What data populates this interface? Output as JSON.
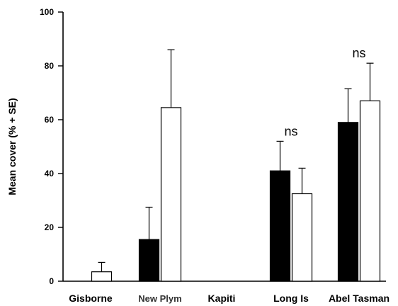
{
  "chart_data": {
    "type": "bar",
    "ylabel": "Mean cover (% + SE)",
    "xlabel": "",
    "ylim": [
      0,
      100
    ],
    "yticks": [
      "0",
      "20",
      "40",
      "60",
      "80",
      "100"
    ],
    "categories": [
      "Gisborne",
      "New Plym",
      "Kapiti",
      "Long Is",
      "Abel Tasman"
    ],
    "series": [
      {
        "fill": "#000000",
        "values": [
          0,
          15.5,
          0,
          41,
          59
        ],
        "errors": [
          0,
          12,
          0,
          11,
          12.5
        ]
      },
      {
        "fill": "#ffffff",
        "values": [
          3.5,
          64.5,
          0,
          32.5,
          67
        ],
        "errors": [
          3.5,
          21.5,
          0,
          9.5,
          14
        ]
      }
    ],
    "annotations": [
      {
        "category": "Long Is",
        "text": "ns"
      },
      {
        "category": "Abel Tasman",
        "text": "ns"
      }
    ],
    "grid": false,
    "legend": "none"
  }
}
